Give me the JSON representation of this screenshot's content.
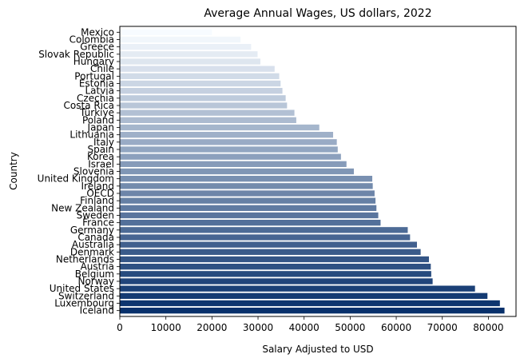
{
  "chart_data": {
    "type": "bar",
    "orientation": "horizontal",
    "title": "Average Annual Wages, US dollars, 2022",
    "xlabel": "Salary Adjusted to USD",
    "ylabel": "Country",
    "xlim": [
      0,
      86000
    ],
    "xticks": [
      0,
      10000,
      20000,
      30000,
      40000,
      50000,
      60000,
      70000,
      80000
    ],
    "grid": false,
    "legend": "none",
    "color_scale": [
      "#f7fbff",
      "#08306b"
    ],
    "categories": [
      "Mexico",
      "Colombia",
      "Greece",
      "Slovak Republic",
      "Hungary",
      "Chile",
      "Portugal",
      "Estonia",
      "Latvia",
      "Czechia",
      "Costa Rica",
      "Türkiye",
      "Poland",
      "Japan",
      "Lithuania",
      "Italy",
      "Spain",
      "Korea",
      "Israel",
      "Slovenia",
      "United Kingdom",
      "Ireland",
      "OECD",
      "Finland",
      "New Zealand",
      "Sweden",
      "France",
      "Germany",
      "Canada",
      "Australia",
      "Denmark",
      "Netherlands",
      "Austria",
      "Belgium",
      "Norway",
      "United States",
      "Switzerland",
      "Luxembourg",
      "Iceland"
    ],
    "values": [
      20000,
      26200,
      28500,
      29900,
      30500,
      33600,
      34600,
      34900,
      35300,
      36000,
      36300,
      37900,
      38300,
      43300,
      46300,
      47100,
      47300,
      48000,
      49200,
      50800,
      54800,
      54900,
      55300,
      55500,
      55700,
      56100,
      56600,
      62500,
      63000,
      64500,
      65300,
      67100,
      67500,
      67600,
      67900,
      77100,
      79800,
      82500,
      83500
    ]
  }
}
